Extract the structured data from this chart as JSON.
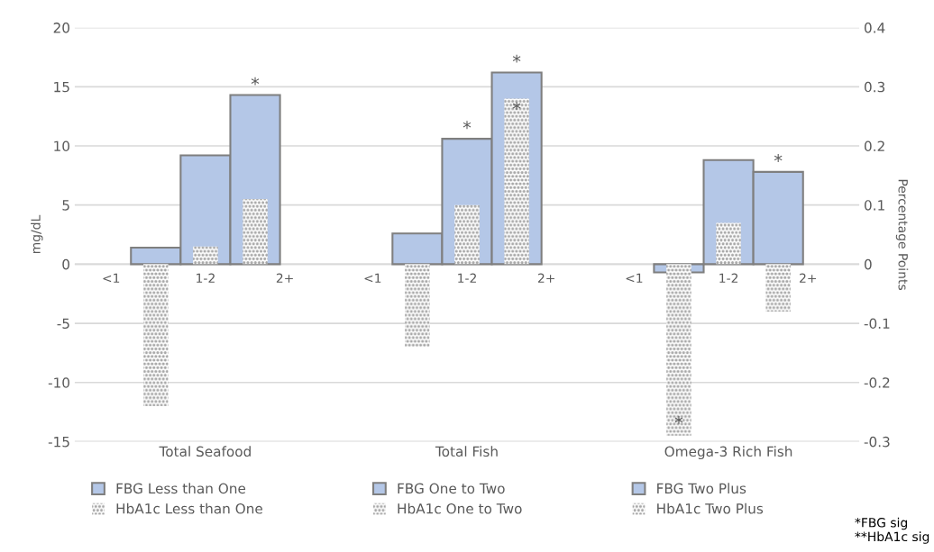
{
  "chart_data": {
    "type": "bar",
    "categories": [
      "Total Seafood",
      "Total Fish",
      "Omega-3 Rich Fish"
    ],
    "ylabel": "mg/dL",
    "y2label": "Percentage Points",
    "ylim": [
      -15,
      20
    ],
    "yticks": [
      -15,
      -10,
      -5,
      0,
      5,
      10,
      15,
      20
    ],
    "y2lim": [
      -0.3,
      0.4
    ],
    "y2ticks": [
      -0.3,
      -0.2,
      -0.1,
      0,
      0.1,
      0.2,
      0.3,
      0.4
    ],
    "grid": "y",
    "legend": "bottom",
    "series": [
      {
        "name": "FBG Less than One",
        "color": "#b4c7e7",
        "values": [
          1.4,
          2.6,
          -0.7
        ]
      },
      {
        "name": "FBG One to Two",
        "color": "#b4c7e7",
        "values": [
          9.2,
          10.6,
          8.8
        ],
        "value_labels": [
          null,
          "*",
          null
        ]
      },
      {
        "name": "FBG Two Plus",
        "color": "#b4c7e7",
        "values": [
          14.3,
          16.2,
          7.8
        ],
        "value_labels": [
          "*",
          "*",
          "*"
        ]
      },
      {
        "name": "HbA1c Less than One",
        "color": "#a6a6a6",
        "axis": "y2",
        "values": [
          -0.24,
          -0.14,
          -0.29
        ],
        "value_labels": [
          null,
          null,
          "*"
        ]
      },
      {
        "name": "HbA1c One to Two",
        "color": "#a6a6a6",
        "axis": "y2",
        "values": [
          0.03,
          0.1,
          0.07
        ]
      },
      {
        "name": "HbA1c Two Plus",
        "color": "#a6a6a6",
        "axis": "y2",
        "values": [
          0.11,
          0.28,
          -0.08
        ],
        "value_labels": [
          null,
          "*",
          null
        ]
      }
    ],
    "annotations": [
      "<1",
      "1-2",
      "2+",
      "<1",
      "1-2",
      "2+",
      "<1",
      "1-2",
      "2+",
      "*FBG sig",
      "**HbA1c sig"
    ]
  }
}
